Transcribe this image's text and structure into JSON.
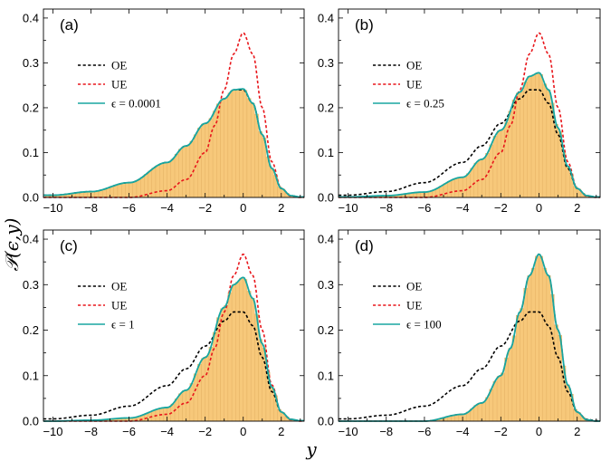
{
  "figure": {
    "ylabel": "𝒫(ϵ,y)",
    "xlabel": "y"
  },
  "colors": {
    "OE": "#000000",
    "UE": "#e8161b",
    "epsilon_curve": "#18a6a0",
    "histogram_fill": "#f7c87a",
    "histogram_edge": "#e0ab5c"
  },
  "chart_data": [
    {
      "type": "line",
      "panel": "(a)",
      "series": [
        {
          "name": "OE",
          "style": "dashed",
          "x": [
            -10,
            -8,
            -6,
            -4,
            -3,
            -2,
            -1,
            -0.5,
            0,
            0.5,
            1,
            1.5,
            2,
            2.5,
            3
          ],
          "y": [
            0.005,
            0.013,
            0.033,
            0.078,
            0.115,
            0.165,
            0.22,
            0.24,
            0.24,
            0.21,
            0.14,
            0.065,
            0.02,
            0.004,
            0.001
          ]
        },
        {
          "name": "UE",
          "style": "dashed",
          "x": [
            -10,
            -6,
            -4,
            -3,
            -2,
            -1.5,
            -1,
            -0.5,
            0,
            0.5,
            1,
            1.5,
            2,
            2.5,
            3
          ],
          "y": [
            0,
            0.0,
            0.015,
            0.04,
            0.1,
            0.16,
            0.24,
            0.32,
            0.367,
            0.32,
            0.2,
            0.08,
            0.02,
            0.003,
            0
          ]
        },
        {
          "name": "ϵ = 0.0001",
          "style": "solid",
          "x": [
            -10,
            -8,
            -6,
            -4,
            -3,
            -2,
            -1,
            -0.5,
            0,
            0.5,
            1,
            1.5,
            2,
            2.5,
            3
          ],
          "y": [
            0.005,
            0.013,
            0.033,
            0.078,
            0.115,
            0.165,
            0.22,
            0.24,
            0.242,
            0.21,
            0.14,
            0.065,
            0.02,
            0.004,
            0.001
          ]
        }
      ],
      "histogram": {
        "follows": "ϵ = 0.0001"
      },
      "xlim": [
        -10.5,
        3.2
      ],
      "ylim": [
        0,
        0.42
      ],
      "xticks": [
        "-10",
        "-8",
        "-6",
        "-4",
        "-2",
        "0",
        "2"
      ],
      "yticks": [
        "0.0",
        "0.1",
        "0.2",
        "0.3",
        "0.4"
      ],
      "legend": [
        "OE",
        "UE",
        "ϵ = 0.0001"
      ]
    },
    {
      "type": "line",
      "panel": "(b)",
      "series": [
        {
          "name": "OE",
          "style": "dashed",
          "x": [
            -10,
            -8,
            -6,
            -4,
            -3,
            -2,
            -1,
            -0.5,
            0,
            0.5,
            1,
            1.5,
            2,
            2.5,
            3
          ],
          "y": [
            0.005,
            0.013,
            0.033,
            0.078,
            0.115,
            0.165,
            0.22,
            0.24,
            0.24,
            0.21,
            0.14,
            0.065,
            0.02,
            0.004,
            0.001
          ]
        },
        {
          "name": "UE",
          "style": "dashed",
          "x": [
            -10,
            -6,
            -4,
            -3,
            -2,
            -1.5,
            -1,
            -0.5,
            0,
            0.5,
            1,
            1.5,
            2,
            2.5,
            3
          ],
          "y": [
            0,
            0.0,
            0.015,
            0.04,
            0.1,
            0.16,
            0.24,
            0.32,
            0.367,
            0.32,
            0.2,
            0.08,
            0.02,
            0.003,
            0
          ]
        },
        {
          "name": "ϵ = 0.25",
          "style": "solid",
          "x": [
            -10,
            -8,
            -6,
            -4,
            -3,
            -2,
            -1,
            -0.5,
            0,
            0.5,
            1,
            1.5,
            2,
            2.5,
            3
          ],
          "y": [
            0.001,
            0.004,
            0.012,
            0.045,
            0.085,
            0.15,
            0.235,
            0.27,
            0.278,
            0.24,
            0.155,
            0.07,
            0.02,
            0.004,
            0.001
          ]
        }
      ],
      "histogram": {
        "follows": "ϵ = 0.25"
      },
      "xlim": [
        -10.5,
        3.2
      ],
      "ylim": [
        0,
        0.42
      ],
      "xticks": [
        "-10",
        "-8",
        "-6",
        "-4",
        "-2",
        "0",
        "2"
      ],
      "yticks": [
        "0.0",
        "0.1",
        "0.2",
        "0.3",
        "0.4"
      ],
      "legend": [
        "OE",
        "UE",
        "ϵ = 0.25"
      ]
    },
    {
      "type": "line",
      "panel": "(c)",
      "series": [
        {
          "name": "OE",
          "style": "dashed",
          "x": [
            -10,
            -8,
            -6,
            -4,
            -3,
            -2,
            -1,
            -0.5,
            0,
            0.5,
            1,
            1.5,
            2,
            2.5,
            3
          ],
          "y": [
            0.005,
            0.013,
            0.033,
            0.078,
            0.115,
            0.165,
            0.22,
            0.24,
            0.24,
            0.21,
            0.14,
            0.065,
            0.02,
            0.004,
            0.001
          ]
        },
        {
          "name": "UE",
          "style": "dashed",
          "x": [
            -10,
            -6,
            -4,
            -3,
            -2,
            -1.5,
            -1,
            -0.5,
            0,
            0.5,
            1,
            1.5,
            2,
            2.5,
            3
          ],
          "y": [
            0,
            0.0,
            0.015,
            0.04,
            0.1,
            0.16,
            0.24,
            0.32,
            0.367,
            0.32,
            0.2,
            0.08,
            0.02,
            0.003,
            0
          ]
        },
        {
          "name": "ϵ = 1",
          "style": "solid",
          "x": [
            -10,
            -8,
            -6,
            -4,
            -3,
            -2,
            -1,
            -0.5,
            0,
            0.5,
            1,
            1.5,
            2,
            2.5,
            3
          ],
          "y": [
            0,
            0.002,
            0.007,
            0.03,
            0.068,
            0.14,
            0.25,
            0.3,
            0.316,
            0.27,
            0.17,
            0.075,
            0.02,
            0.004,
            0.001
          ]
        }
      ],
      "histogram": {
        "follows": "ϵ = 1"
      },
      "xlim": [
        -10.5,
        3.2
      ],
      "ylim": [
        0,
        0.42
      ],
      "xticks": [
        "-10",
        "-8",
        "-6",
        "-4",
        "-2",
        "0",
        "2"
      ],
      "yticks": [
        "0.0",
        "0.1",
        "0.2",
        "0.3",
        "0.4"
      ],
      "legend": [
        "OE",
        "UE",
        "ϵ = 1"
      ]
    },
    {
      "type": "line",
      "panel": "(d)",
      "series": [
        {
          "name": "OE",
          "style": "dashed",
          "x": [
            -10,
            -8,
            -6,
            -4,
            -3,
            -2,
            -1,
            -0.5,
            0,
            0.5,
            1,
            1.5,
            2,
            2.5,
            3
          ],
          "y": [
            0.005,
            0.013,
            0.033,
            0.078,
            0.115,
            0.165,
            0.22,
            0.24,
            0.24,
            0.21,
            0.14,
            0.065,
            0.02,
            0.004,
            0.001
          ]
        },
        {
          "name": "UE",
          "style": "dashed",
          "x": [
            -10,
            -6,
            -4,
            -3,
            -2,
            -1.5,
            -1,
            -0.5,
            0,
            0.5,
            1,
            1.5,
            2,
            2.5,
            3
          ],
          "y": [
            0,
            0.0,
            0.015,
            0.04,
            0.1,
            0.16,
            0.24,
            0.32,
            0.367,
            0.32,
            0.2,
            0.08,
            0.02,
            0.003,
            0
          ]
        },
        {
          "name": "ϵ = 100",
          "style": "solid",
          "x": [
            -10,
            -6,
            -4,
            -3,
            -2,
            -1.5,
            -1,
            -0.5,
            0,
            0.5,
            1,
            1.5,
            2,
            2.5,
            3
          ],
          "y": [
            0,
            0.0,
            0.015,
            0.04,
            0.1,
            0.16,
            0.24,
            0.32,
            0.367,
            0.32,
            0.2,
            0.08,
            0.02,
            0.003,
            0
          ]
        }
      ],
      "histogram": {
        "follows": "ϵ = 100"
      },
      "xlim": [
        -10.5,
        3.2
      ],
      "ylim": [
        0,
        0.42
      ],
      "xticks": [
        "-10",
        "-8",
        "-6",
        "-4",
        "-2",
        "0",
        "2"
      ],
      "yticks": [
        "0.0",
        "0.1",
        "0.2",
        "0.3",
        "0.4"
      ],
      "legend": [
        "OE",
        "UE",
        "ϵ = 100"
      ]
    }
  ]
}
